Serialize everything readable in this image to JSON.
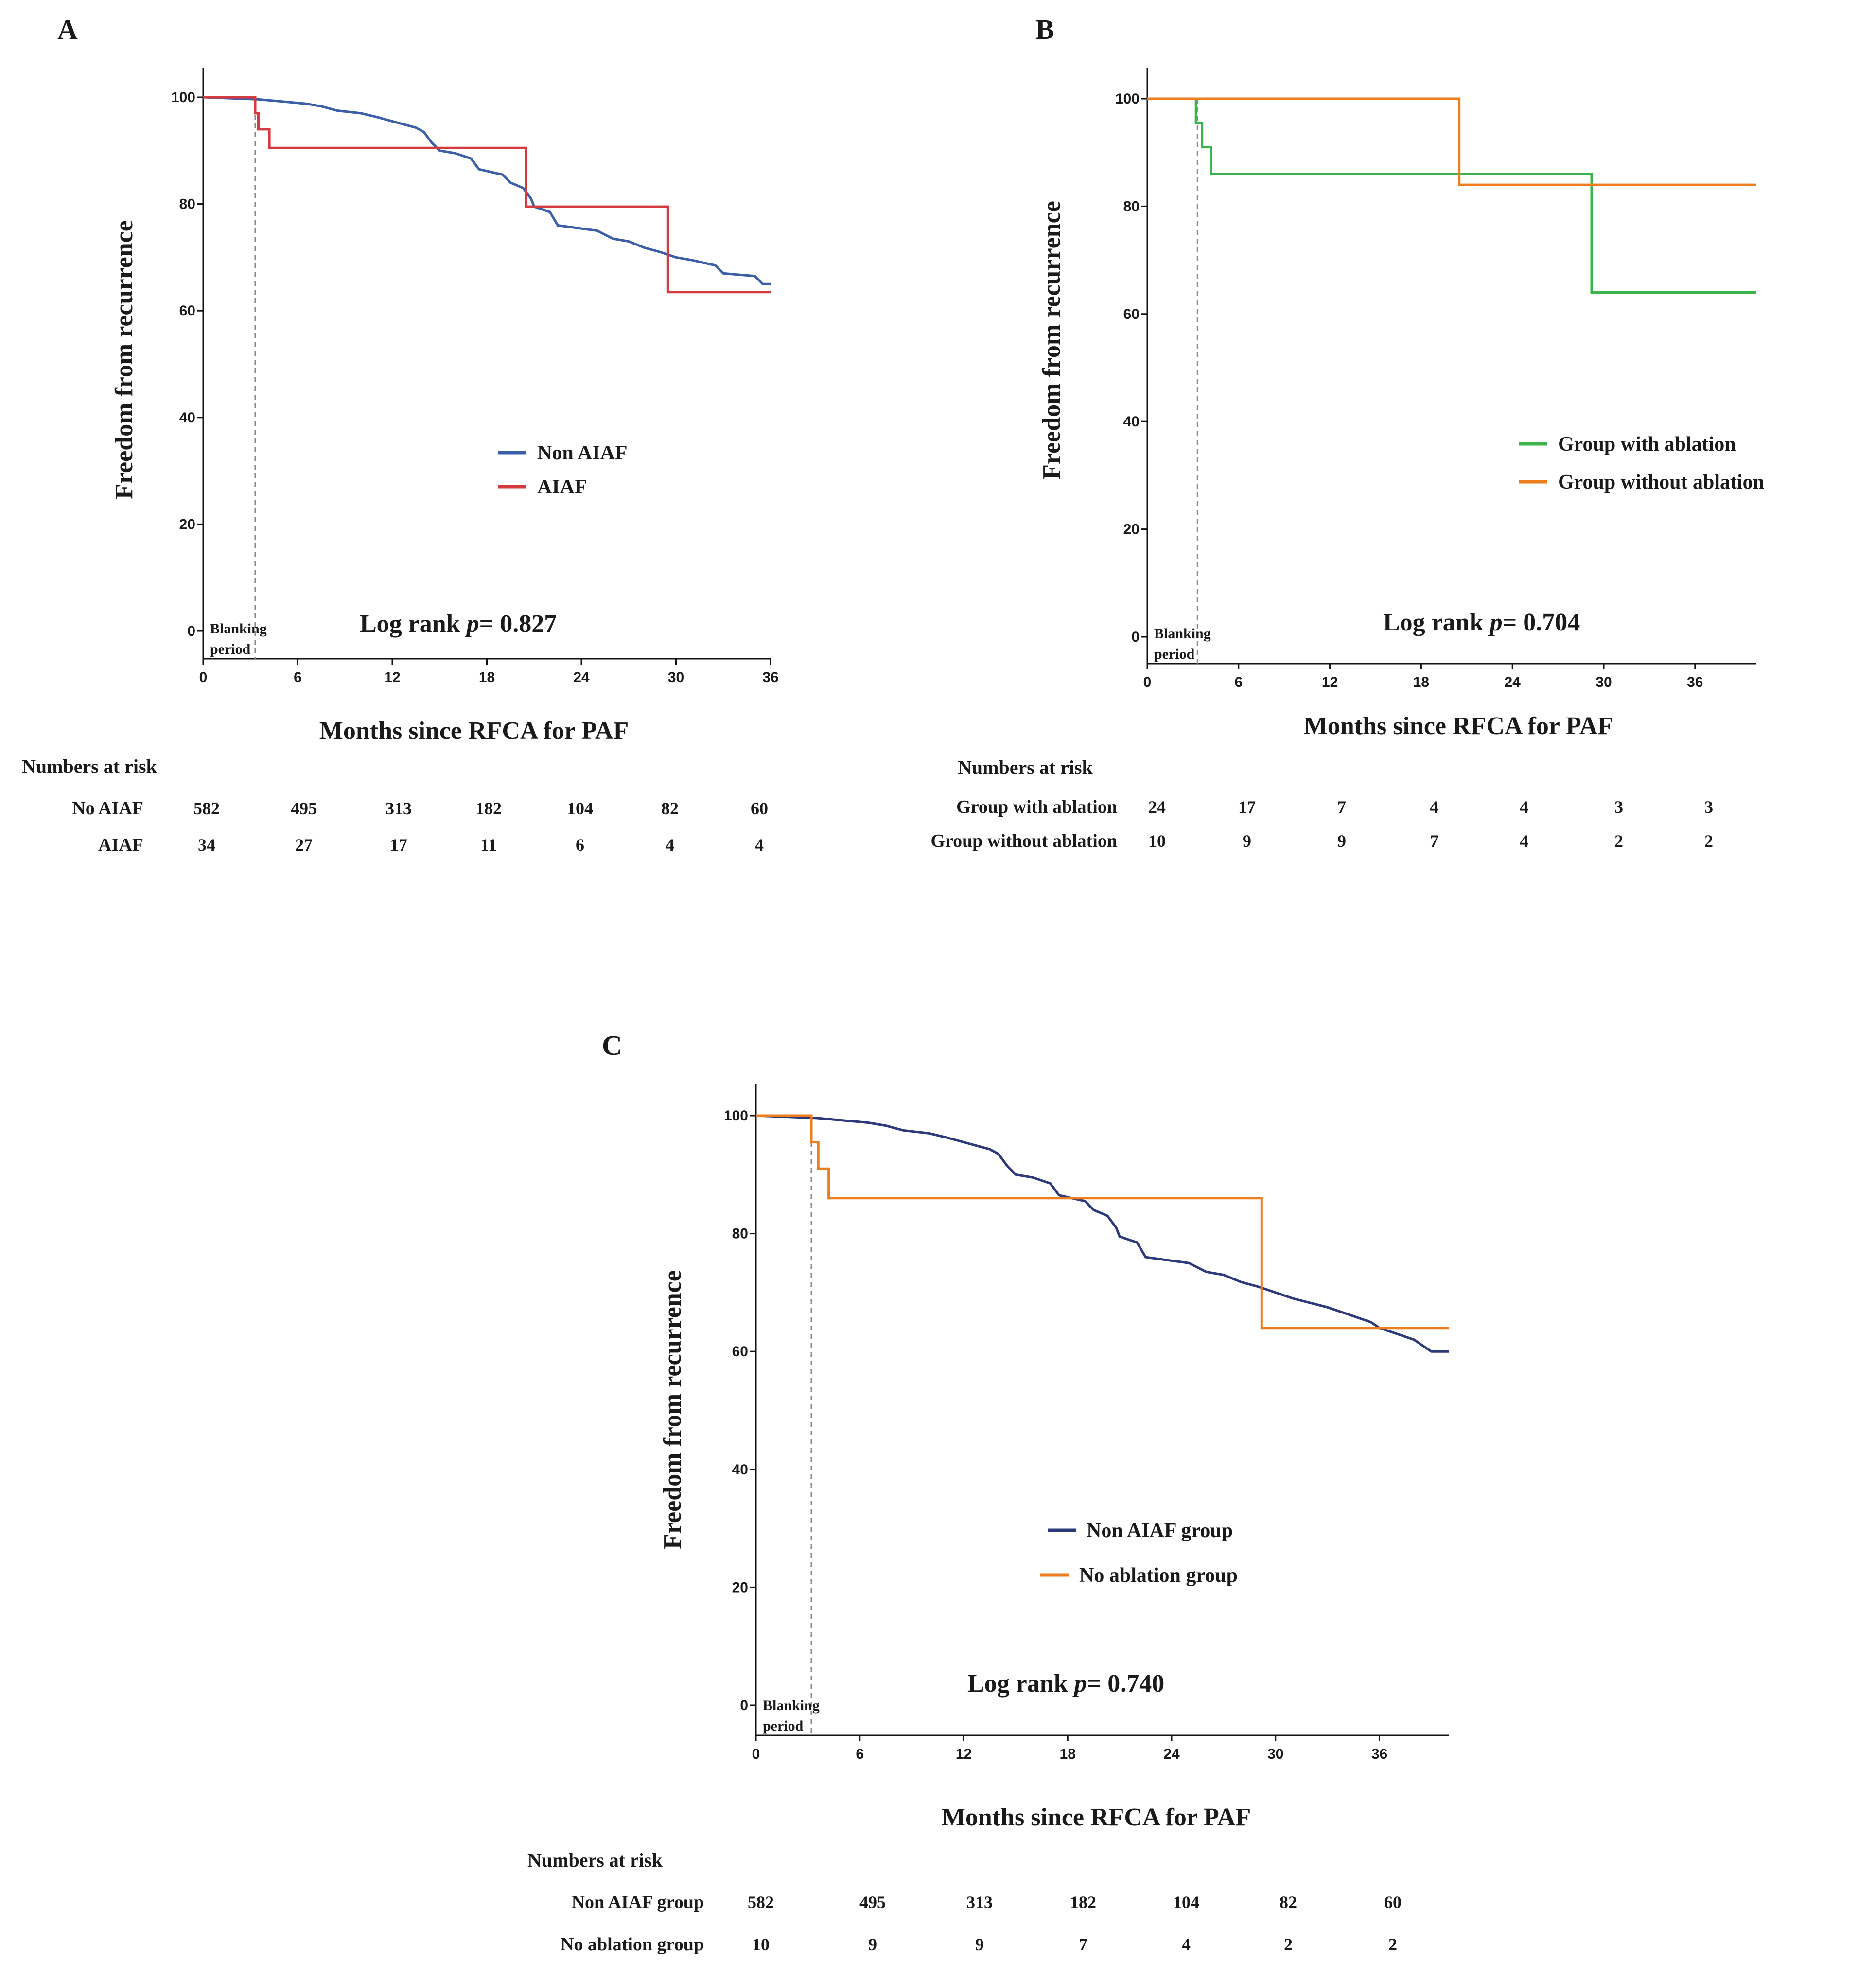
{
  "colors": {
    "axis": "#111111",
    "blanking_line": "#888888",
    "non_aiaf_a": "#3a5ea8",
    "aiaf": "#d43a40",
    "group_with_ablation": "#3cb44b",
    "group_without_ablation": "#ee7d1e",
    "non_aiaf_c": "#2c3a7c",
    "no_ablation": "#ee7d1e"
  },
  "chart_data": [
    {
      "id": "A",
      "type": "line",
      "panel_label": "A",
      "xlabel": "Months since RFCA for PAF",
      "ylabel": "Freedom from recurrence",
      "xlim": [
        0,
        36
      ],
      "ylim": [
        0,
        100
      ],
      "xticks": [
        "0",
        "6",
        "12",
        "18",
        "24",
        "30",
        "36"
      ],
      "yticks": [
        "0",
        "20",
        "40",
        "60",
        "80",
        "100"
      ],
      "blanking_month": 3.3,
      "blanking_label": [
        "Blanking",
        "period"
      ],
      "legend": {
        "placement": "middle-right"
      },
      "annotation": {
        "prefix": "Log rank ",
        "p": "p",
        "suffix": "= 0.827"
      },
      "series": [
        {
          "name": "Non AIAF",
          "color_key": "non_aiaf_a",
          "points": [
            [
              0,
              100
            ],
            [
              3.5,
              99.6
            ],
            [
              5,
              99.2
            ],
            [
              6.5,
              98.8
            ],
            [
              7.5,
              98.3
            ],
            [
              8.5,
              97.5
            ],
            [
              10,
              97
            ],
            [
              11,
              96.3
            ],
            [
              12,
              95.5
            ],
            [
              13,
              94.7
            ],
            [
              13.5,
              94.3
            ],
            [
              14,
              93.5
            ],
            [
              14.5,
              91.5
            ],
            [
              15,
              90
            ],
            [
              16,
              89.5
            ],
            [
              17,
              88.5
            ],
            [
              17.5,
              86.5
            ],
            [
              19,
              85.5
            ],
            [
              19.5,
              84
            ],
            [
              20.3,
              83
            ],
            [
              20.8,
              81
            ],
            [
              21,
              79.5
            ],
            [
              22,
              78.5
            ],
            [
              22.5,
              76
            ],
            [
              25,
              75
            ],
            [
              26,
              73.5
            ],
            [
              27,
              73
            ],
            [
              28,
              71.8
            ],
            [
              29,
              71
            ],
            [
              30,
              70
            ],
            [
              31,
              69.5
            ],
            [
              32.5,
              68.5
            ],
            [
              33,
              67
            ],
            [
              35,
              66.5
            ],
            [
              35.5,
              65
            ],
            [
              36,
              65
            ]
          ]
        },
        {
          "name": "AIAF",
          "color_key": "aiaf",
          "points": [
            [
              0,
              100
            ],
            [
              3.3,
              100
            ],
            [
              3.3,
              97
            ],
            [
              3.5,
              97
            ],
            [
              3.5,
              94
            ],
            [
              4.2,
              94
            ],
            [
              4.2,
              90.5
            ],
            [
              20.5,
              90.5
            ],
            [
              20.5,
              79.5
            ],
            [
              29.5,
              79.5
            ],
            [
              29.5,
              63.5
            ],
            [
              36,
              63.5
            ]
          ]
        }
      ],
      "risk_table": {
        "title": "Numbers at risk",
        "rows": [
          {
            "label": "No AIAF",
            "values": [
              "582",
              "495",
              "313",
              "182",
              "104",
              "82",
              "60"
            ]
          },
          {
            "label": "AIAF",
            "values": [
              "34",
              "27",
              "17",
              "11",
              "6",
              "4",
              "4"
            ]
          }
        ]
      }
    },
    {
      "id": "B",
      "type": "line",
      "panel_label": "B",
      "xlabel": "Months since RFCA for PAF",
      "ylabel": "Freedom from recurrence",
      "xlim": [
        0,
        40
      ],
      "ylim": [
        0,
        100
      ],
      "xticks": [
        "0",
        "6",
        "12",
        "18",
        "24",
        "30",
        "36"
      ],
      "yticks": [
        "0",
        "20",
        "40",
        "60",
        "80",
        "100"
      ],
      "blanking_month": 3.3,
      "blanking_label": [
        "Blanking",
        "period"
      ],
      "legend": {
        "placement": "middle-right"
      },
      "annotation": {
        "prefix": "Log rank ",
        "p": "p",
        "suffix": "= 0.704"
      },
      "series": [
        {
          "name": "Group  with  ablation",
          "color_key": "group_with_ablation",
          "points": [
            [
              0,
              100
            ],
            [
              3.2,
              100
            ],
            [
              3.2,
              95.5
            ],
            [
              3.6,
              95.5
            ],
            [
              3.6,
              91
            ],
            [
              4.2,
              91
            ],
            [
              4.2,
              86
            ],
            [
              29.2,
              86
            ],
            [
              29.2,
              64
            ],
            [
              40,
              64
            ]
          ]
        },
        {
          "name": "Group  without  ablation",
          "color_key": "group_without_ablation",
          "points": [
            [
              0,
              100
            ],
            [
              20.5,
              100
            ],
            [
              20.5,
              84
            ],
            [
              40,
              84
            ]
          ]
        }
      ],
      "risk_table": {
        "title": "Numbers at risk",
        "rows": [
          {
            "label": "Group with ablation",
            "values": [
              "24",
              "17",
              "7",
              "4",
              "4",
              "3",
              "3"
            ]
          },
          {
            "label": "Group without ablation",
            "values": [
              "10",
              "9",
              "9",
              "7",
              "4",
              "2",
              "2"
            ]
          }
        ]
      }
    },
    {
      "id": "C",
      "type": "line",
      "panel_label": "C",
      "xlabel": "Months since RFCA for PAF",
      "ylabel": "Freedom from recurrence",
      "xlim": [
        0,
        40
      ],
      "ylim": [
        0,
        100
      ],
      "xticks": [
        "0",
        "6",
        "12",
        "18",
        "24",
        "30",
        "36"
      ],
      "yticks": [
        "0",
        "20",
        "40",
        "60",
        "80",
        "100"
      ],
      "blanking_month": 3.2,
      "blanking_label": [
        "Blanking",
        "period"
      ],
      "legend": {
        "placement": "middle-right"
      },
      "annotation": {
        "prefix": "Log rank ",
        "p": "p",
        "suffix": "= 0.740"
      },
      "series": [
        {
          "name": "Non AIAF  group",
          "color_key": "non_aiaf_c",
          "points": [
            [
              0,
              100
            ],
            [
              3.5,
              99.6
            ],
            [
              5,
              99.2
            ],
            [
              6.5,
              98.8
            ],
            [
              7.5,
              98.3
            ],
            [
              8.5,
              97.5
            ],
            [
              10,
              97
            ],
            [
              11,
              96.3
            ],
            [
              12,
              95.5
            ],
            [
              13,
              94.7
            ],
            [
              13.5,
              94.3
            ],
            [
              14,
              93.5
            ],
            [
              14.5,
              91.5
            ],
            [
              15,
              90
            ],
            [
              16,
              89.5
            ],
            [
              17,
              88.5
            ],
            [
              17.5,
              86.5
            ],
            [
              19,
              85.5
            ],
            [
              19.5,
              84
            ],
            [
              20.3,
              83
            ],
            [
              20.8,
              81
            ],
            [
              21,
              79.5
            ],
            [
              22,
              78.5
            ],
            [
              22.5,
              76
            ],
            [
              25,
              75
            ],
            [
              26,
              73.5
            ],
            [
              27,
              73
            ],
            [
              28,
              71.8
            ],
            [
              29,
              71
            ],
            [
              30,
              70
            ],
            [
              31,
              69
            ],
            [
              33,
              67.5
            ],
            [
              34,
              66.5
            ],
            [
              35.5,
              65
            ],
            [
              36,
              64
            ],
            [
              37,
              63
            ],
            [
              38,
              62
            ],
            [
              38.5,
              61
            ],
            [
              39,
              60
            ],
            [
              40,
              60
            ]
          ]
        },
        {
          "name": "No ablation  group",
          "color_key": "no_ablation",
          "points": [
            [
              0,
              100
            ],
            [
              3.2,
              100
            ],
            [
              3.2,
              95.5
            ],
            [
              3.6,
              95.5
            ],
            [
              3.6,
              91
            ],
            [
              4.2,
              91
            ],
            [
              4.2,
              86
            ],
            [
              29.2,
              86
            ],
            [
              29.2,
              64
            ],
            [
              40,
              64
            ]
          ]
        }
      ],
      "risk_table": {
        "title": "Numbers at risk",
        "rows": [
          {
            "label": "Non AIAF group",
            "values": [
              "582",
              "495",
              "313",
              "182",
              "104",
              "82",
              "60"
            ]
          },
          {
            "label": "No ablation group",
            "values": [
              "10",
              "9",
              "9",
              "7",
              "4",
              "2",
              "2"
            ]
          }
        ]
      }
    }
  ]
}
